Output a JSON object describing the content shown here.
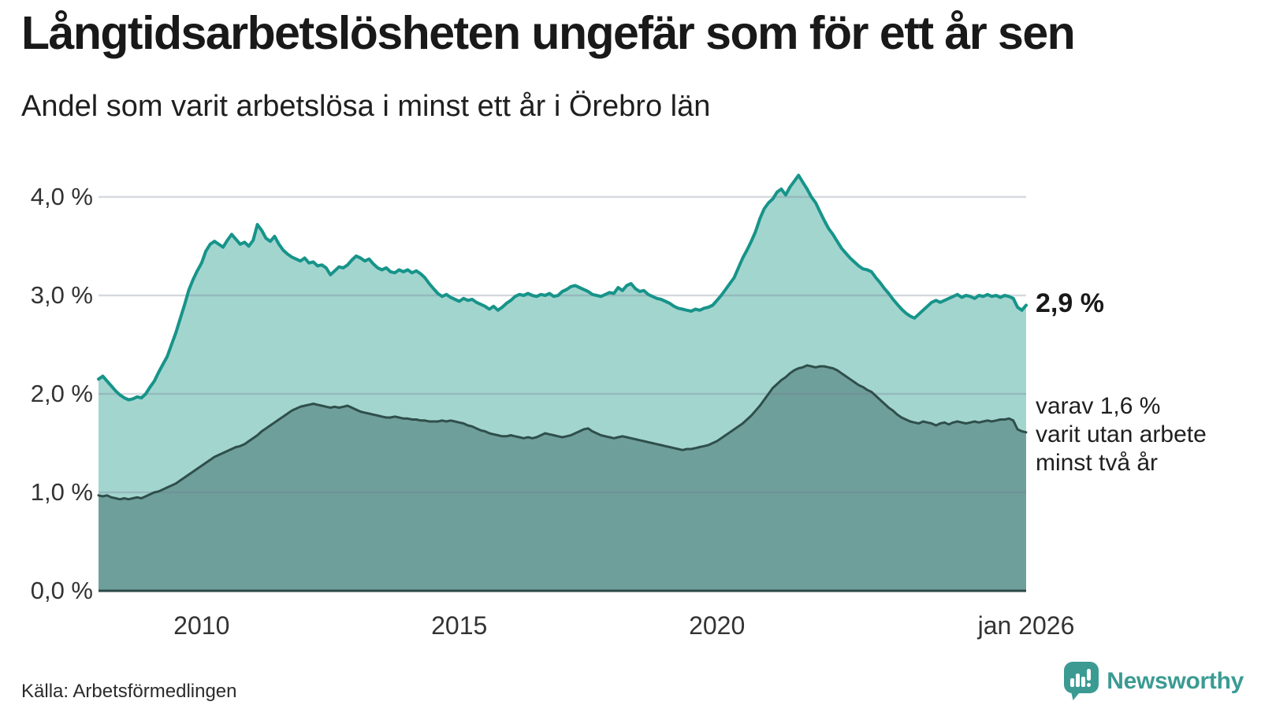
{
  "chart_data": {
    "type": "area",
    "title": "Långtidsarbetslösheten ungefär som för ett år sen",
    "subtitle": "Andel som varit arbetslösa i minst ett år i Örebro län",
    "x_domain": [
      2008.0,
      2026.0
    ],
    "ylim": [
      0,
      4.4
    ],
    "grid": "horizontal",
    "y_ticks": [
      {
        "label": "4,0 %",
        "value": 4.0
      },
      {
        "label": "3,0 %",
        "value": 3.0
      },
      {
        "label": "2,0 %",
        "value": 2.0
      },
      {
        "label": "1,0 %",
        "value": 1.0
      },
      {
        "label": "0,0 %",
        "value": 0.0
      }
    ],
    "x_ticks": [
      {
        "label": "2010",
        "year": 2010
      },
      {
        "label": "2015",
        "year": 2015
      },
      {
        "label": "2020",
        "year": 2020
      },
      {
        "label": "jan 2026",
        "year": 2026
      }
    ],
    "series": [
      {
        "name": "Andel arbetslösa minst ett år",
        "line_color": "#17948a",
        "fill_color": "#a3d5cf",
        "line_width": 4,
        "start_year": 2008.0,
        "step_months": 1,
        "values": [
          2.15,
          2.18,
          2.13,
          2.08,
          2.03,
          1.99,
          1.96,
          1.94,
          1.95,
          1.97,
          1.96,
          2.0,
          2.07,
          2.13,
          2.22,
          2.3,
          2.38,
          2.5,
          2.62,
          2.76,
          2.9,
          3.05,
          3.16,
          3.25,
          3.33,
          3.45,
          3.52,
          3.55,
          3.52,
          3.49,
          3.56,
          3.62,
          3.57,
          3.52,
          3.54,
          3.5,
          3.56,
          3.72,
          3.66,
          3.58,
          3.55,
          3.6,
          3.52,
          3.46,
          3.42,
          3.39,
          3.37,
          3.35,
          3.38,
          3.33,
          3.34,
          3.3,
          3.31,
          3.28,
          3.21,
          3.25,
          3.29,
          3.28,
          3.31,
          3.36,
          3.4,
          3.38,
          3.35,
          3.37,
          3.32,
          3.28,
          3.26,
          3.28,
          3.24,
          3.23,
          3.26,
          3.24,
          3.26,
          3.23,
          3.25,
          3.22,
          3.18,
          3.12,
          3.07,
          3.02,
          2.99,
          3.01,
          2.98,
          2.96,
          2.94,
          2.97,
          2.95,
          2.96,
          2.93,
          2.91,
          2.89,
          2.86,
          2.89,
          2.85,
          2.88,
          2.92,
          2.95,
          2.99,
          3.01,
          3.0,
          3.02,
          3.0,
          2.99,
          3.01,
          3.0,
          3.02,
          2.99,
          3.0,
          3.04,
          3.06,
          3.09,
          3.1,
          3.08,
          3.06,
          3.04,
          3.01,
          3.0,
          2.99,
          3.01,
          3.03,
          3.02,
          3.08,
          3.05,
          3.1,
          3.12,
          3.07,
          3.04,
          3.05,
          3.01,
          2.99,
          2.97,
          2.96,
          2.94,
          2.92,
          2.89,
          2.87,
          2.86,
          2.85,
          2.84,
          2.86,
          2.85,
          2.87,
          2.88,
          2.9,
          2.95,
          3.0,
          3.06,
          3.12,
          3.18,
          3.28,
          3.38,
          3.46,
          3.55,
          3.65,
          3.78,
          3.88,
          3.94,
          3.98,
          4.05,
          4.08,
          4.02,
          4.1,
          4.16,
          4.22,
          4.15,
          4.08,
          4.0,
          3.94,
          3.85,
          3.76,
          3.68,
          3.62,
          3.55,
          3.48,
          3.43,
          3.38,
          3.34,
          3.3,
          3.27,
          3.26,
          3.24,
          3.18,
          3.13,
          3.07,
          3.02,
          2.96,
          2.91,
          2.86,
          2.82,
          2.79,
          2.77,
          2.81,
          2.85,
          2.89,
          2.93,
          2.95,
          2.93,
          2.95,
          2.97,
          2.99,
          3.01,
          2.98,
          3.0,
          2.99,
          2.97,
          3.0,
          2.99,
          3.01,
          2.99,
          3.0,
          2.98,
          3.0,
          2.99,
          2.97,
          2.88,
          2.85,
          2.9
        ]
      },
      {
        "name": "varav arbetslösa minst två år",
        "line_color": "#2f4f4b",
        "fill_color": "#6f9f9b",
        "line_width": 3,
        "start_year": 2008.0,
        "step_months": 1,
        "values": [
          0.97,
          0.96,
          0.97,
          0.95,
          0.94,
          0.93,
          0.94,
          0.93,
          0.94,
          0.95,
          0.94,
          0.96,
          0.98,
          1.0,
          1.01,
          1.03,
          1.05,
          1.07,
          1.09,
          1.12,
          1.15,
          1.18,
          1.21,
          1.24,
          1.27,
          1.3,
          1.33,
          1.36,
          1.38,
          1.4,
          1.42,
          1.44,
          1.46,
          1.47,
          1.49,
          1.52,
          1.55,
          1.58,
          1.62,
          1.65,
          1.68,
          1.71,
          1.74,
          1.77,
          1.8,
          1.83,
          1.85,
          1.87,
          1.88,
          1.89,
          1.9,
          1.89,
          1.88,
          1.87,
          1.86,
          1.87,
          1.86,
          1.87,
          1.88,
          1.86,
          1.84,
          1.82,
          1.81,
          1.8,
          1.79,
          1.78,
          1.77,
          1.76,
          1.76,
          1.77,
          1.76,
          1.75,
          1.75,
          1.74,
          1.74,
          1.73,
          1.73,
          1.72,
          1.72,
          1.72,
          1.73,
          1.72,
          1.73,
          1.72,
          1.71,
          1.7,
          1.68,
          1.67,
          1.65,
          1.63,
          1.62,
          1.6,
          1.59,
          1.58,
          1.57,
          1.57,
          1.58,
          1.57,
          1.56,
          1.55,
          1.56,
          1.55,
          1.56,
          1.58,
          1.6,
          1.59,
          1.58,
          1.57,
          1.56,
          1.57,
          1.58,
          1.6,
          1.62,
          1.64,
          1.65,
          1.62,
          1.6,
          1.58,
          1.57,
          1.56,
          1.55,
          1.56,
          1.57,
          1.56,
          1.55,
          1.54,
          1.53,
          1.52,
          1.51,
          1.5,
          1.49,
          1.48,
          1.47,
          1.46,
          1.45,
          1.44,
          1.43,
          1.44,
          1.44,
          1.45,
          1.46,
          1.47,
          1.48,
          1.5,
          1.52,
          1.55,
          1.58,
          1.61,
          1.64,
          1.67,
          1.7,
          1.74,
          1.78,
          1.83,
          1.88,
          1.94,
          2.0,
          2.06,
          2.1,
          2.14,
          2.17,
          2.21,
          2.24,
          2.26,
          2.27,
          2.29,
          2.28,
          2.27,
          2.28,
          2.28,
          2.27,
          2.26,
          2.24,
          2.21,
          2.18,
          2.15,
          2.12,
          2.09,
          2.07,
          2.04,
          2.02,
          1.98,
          1.94,
          1.9,
          1.86,
          1.83,
          1.79,
          1.76,
          1.74,
          1.72,
          1.71,
          1.7,
          1.72,
          1.71,
          1.7,
          1.68,
          1.7,
          1.71,
          1.69,
          1.71,
          1.72,
          1.71,
          1.7,
          1.71,
          1.72,
          1.71,
          1.72,
          1.73,
          1.72,
          1.73,
          1.74,
          1.74,
          1.75,
          1.73,
          1.64,
          1.62,
          1.61
        ]
      }
    ],
    "annotations": {
      "latest_label": "2,9 %",
      "latest_value": 2.9,
      "sub_lines": [
        "varav 1,6 %",
        "varit utan arbete",
        "minst två år"
      ],
      "sub_value": 1.6
    },
    "colors": {
      "gridline": "#e2e4e8",
      "baseline": "#2c4a47",
      "text": "#191919",
      "tick_text": "#333333"
    }
  },
  "footer": {
    "source": "Källa: Arbetsförmedlingen",
    "brand": "Newsworthy",
    "brand_color": "#3b9b93"
  }
}
